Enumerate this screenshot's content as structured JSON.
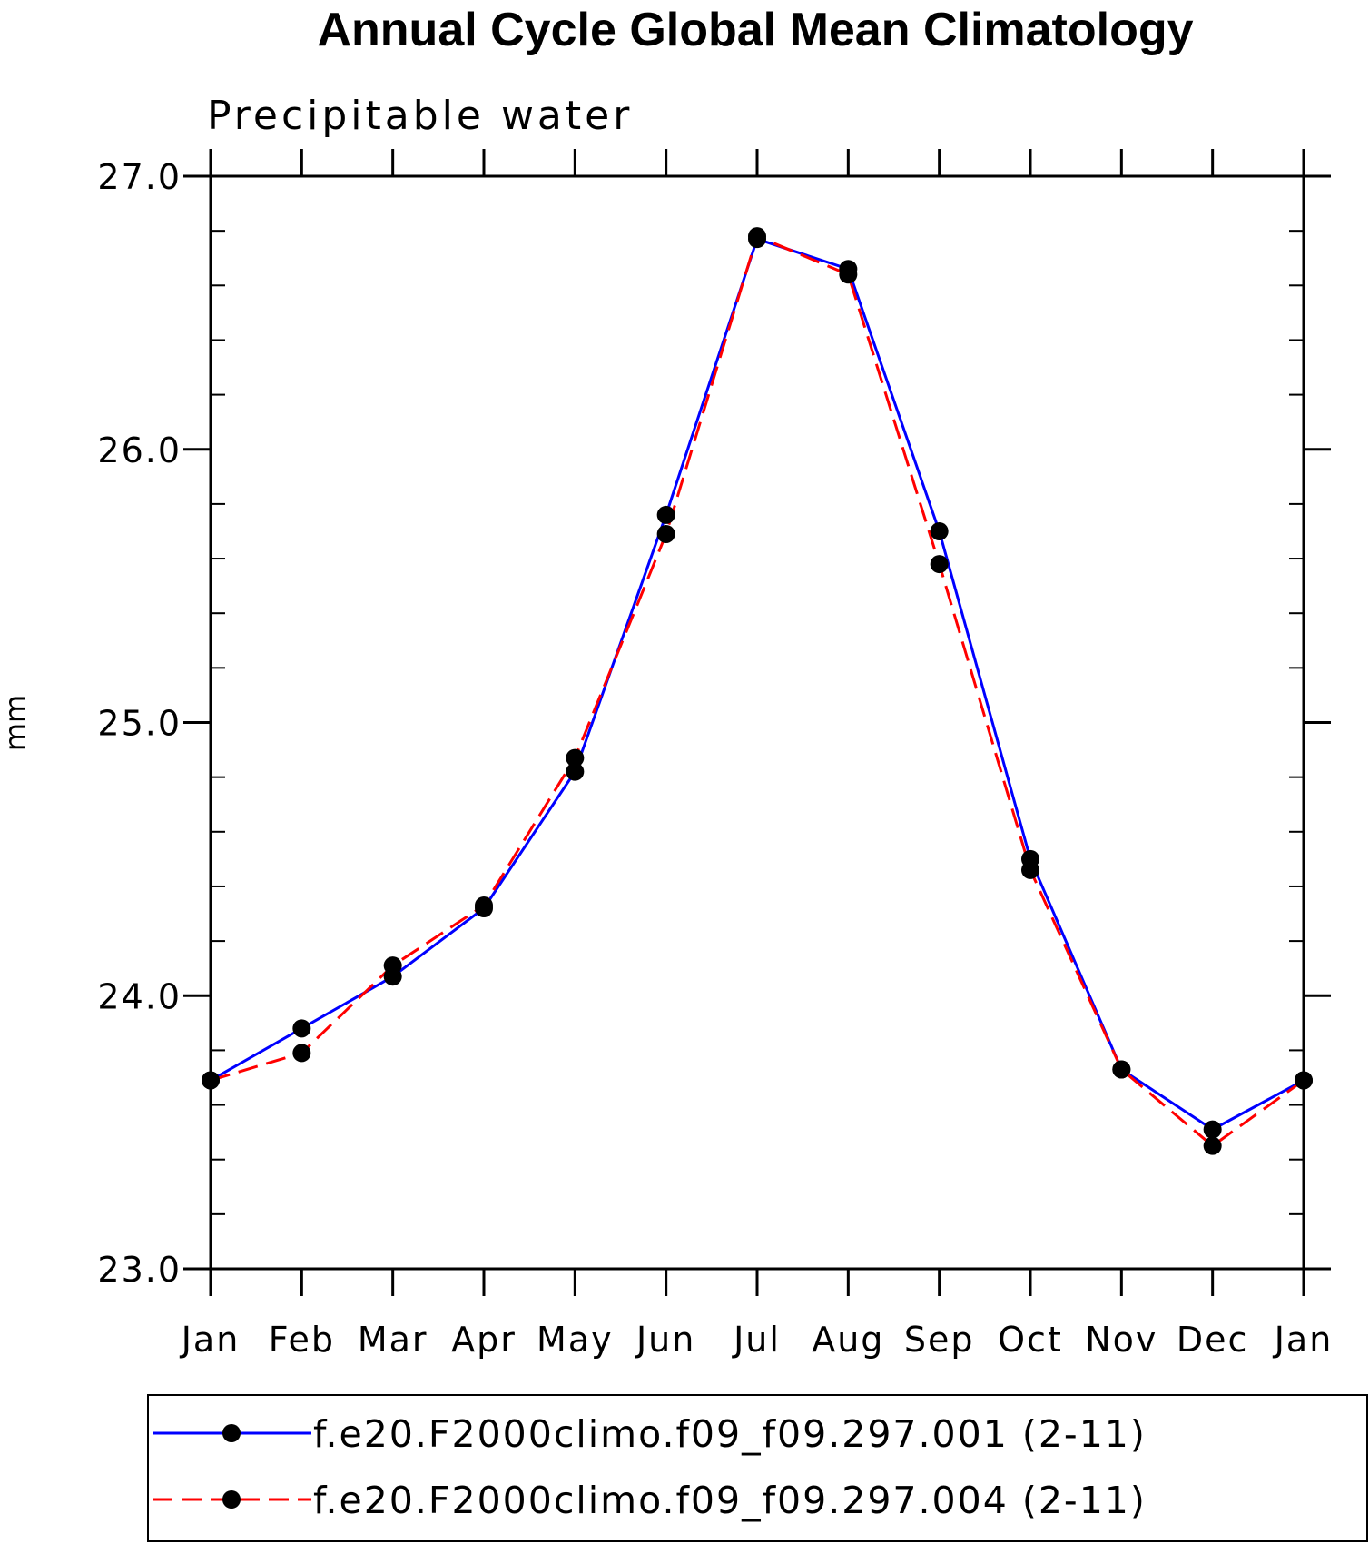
{
  "chart_data": {
    "type": "line",
    "title": "Annual Cycle Global Mean Climatology",
    "subtitle": "Precipitable water",
    "xlabel": "",
    "ylabel": "mm",
    "categories": [
      "Jan",
      "Feb",
      "Mar",
      "Apr",
      "May",
      "Jun",
      "Jul",
      "Aug",
      "Sep",
      "Oct",
      "Nov",
      "Dec",
      "Jan"
    ],
    "ylim": [
      23.0,
      27.0
    ],
    "yticks": [
      "23.0",
      "24.0",
      "25.0",
      "26.0",
      "27.0"
    ],
    "ytick_values": [
      23.0,
      24.0,
      25.0,
      26.0,
      27.0
    ],
    "minor_ytick_step": 0.2,
    "grid": false,
    "legend_position": "bottom",
    "series": [
      {
        "name": "f.e20.F2000climo.f09_f09.297.001 (2-11)",
        "color": "#0000ff",
        "line_style": "solid",
        "marker": "filled-circle",
        "values": [
          23.69,
          23.88,
          24.07,
          24.32,
          24.82,
          25.76,
          26.77,
          26.66,
          25.7,
          24.5,
          23.73,
          23.51,
          23.69
        ]
      },
      {
        "name": "f.e20.F2000climo.f09_f09.297.004 (2-11)",
        "color": "#ff0000",
        "line_style": "dashed",
        "marker": "filled-circle",
        "values": [
          23.69,
          23.79,
          24.11,
          24.33,
          24.87,
          25.69,
          26.78,
          26.64,
          25.58,
          24.46,
          23.73,
          23.45,
          23.69
        ]
      }
    ]
  }
}
